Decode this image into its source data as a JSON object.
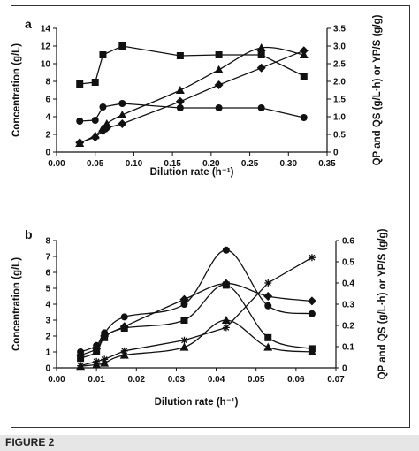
{
  "caption": "FIGURE 2",
  "chart_data": [
    {
      "panel_label": "a",
      "type": "line",
      "xlabel": "Dilution rate (h⁻¹)",
      "ylabel_left": "Concentration (g/L)",
      "ylabel_right": "QP and QS (g/L·h) or YP/S (g/g)",
      "xlim": [
        0,
        0.35
      ],
      "ylim_left": [
        0,
        14
      ],
      "ylim_right": [
        0,
        3.5
      ],
      "x_ticks": [
        "0.00",
        "0.05",
        "0.10",
        "0.15",
        "0.20",
        "0.25",
        "0.30",
        "0.35"
      ],
      "y_left_ticks": [
        "0",
        "2",
        "4",
        "6",
        "8",
        "10",
        "12",
        "14"
      ],
      "y_right_ticks": [
        "0",
        "0.5",
        "1.0",
        "1.5",
        "2.0",
        "2.5",
        "3.0",
        "3.5"
      ],
      "grid": false,
      "series": [
        {
          "marker": "square",
          "axis": "left",
          "smooth": false,
          "x": [
            0.03,
            0.05,
            0.06,
            0.085,
            0.16,
            0.21,
            0.265,
            0.32
          ],
          "y": [
            7.7,
            7.9,
            11.0,
            12.0,
            10.9,
            11.0,
            11.0,
            8.6
          ]
        },
        {
          "marker": "circle",
          "axis": "left",
          "smooth": false,
          "x": [
            0.03,
            0.05,
            0.06,
            0.085,
            0.16,
            0.21,
            0.265,
            0.32
          ],
          "y": [
            3.5,
            3.6,
            5.1,
            5.5,
            5.0,
            5.0,
            5.0,
            3.9
          ]
        },
        {
          "marker": "triangle",
          "axis": "right",
          "smooth": true,
          "x": [
            0.03,
            0.05,
            0.06,
            0.065,
            0.085,
            0.16,
            0.21,
            0.265,
            0.32
          ],
          "y": [
            0.25,
            0.47,
            0.68,
            0.8,
            1.05,
            1.75,
            2.33,
            2.95,
            2.75
          ]
        },
        {
          "marker": "diamond",
          "axis": "right",
          "smooth": false,
          "x": [
            0.03,
            0.05,
            0.06,
            0.065,
            0.085,
            0.16,
            0.21,
            0.265,
            0.32
          ],
          "y": [
            0.27,
            0.42,
            0.6,
            0.68,
            0.8,
            1.43,
            1.9,
            2.38,
            2.87
          ]
        }
      ]
    },
    {
      "panel_label": "b",
      "type": "line",
      "xlabel": "Dilution rate (h⁻¹)",
      "ylabel_left": "Concentration (g/L)",
      "ylabel_right": "QP and QS (g/L·h) or YP/S (g/g)",
      "xlim": [
        0,
        0.07
      ],
      "ylim_left": [
        0,
        8
      ],
      "ylim_right": [
        0,
        0.6
      ],
      "x_ticks": [
        "0.00",
        "0.01",
        "0.02",
        "0.03",
        "0.04",
        "0.05",
        "0.06",
        "0.07"
      ],
      "y_left_ticks": [
        "0",
        "1",
        "2",
        "3",
        "4",
        "5",
        "6",
        "7",
        "8"
      ],
      "y_right_ticks": [
        "0",
        "0.1",
        "0.2",
        "0.3",
        "0.4",
        "0.5",
        "0.6"
      ],
      "grid": false,
      "series": [
        {
          "marker": "circle",
          "axis": "left",
          "smooth": true,
          "x": [
            0.006,
            0.01,
            0.012,
            0.017,
            0.032,
            0.0425,
            0.053,
            0.064
          ],
          "y": [
            1.0,
            1.4,
            2.2,
            3.2,
            4.0,
            7.4,
            3.9,
            3.4
          ]
        },
        {
          "marker": "diamond",
          "axis": "left",
          "smooth": true,
          "x": [
            0.006,
            0.01,
            0.012,
            0.017,
            0.032,
            0.0425,
            0.053,
            0.064
          ],
          "y": [
            0.8,
            1.2,
            2.0,
            2.6,
            4.3,
            5.3,
            4.5,
            4.2
          ]
        },
        {
          "marker": "square",
          "axis": "left",
          "smooth": true,
          "x": [
            0.006,
            0.01,
            0.012,
            0.017,
            0.032,
            0.0425,
            0.053,
            0.064
          ],
          "y": [
            0.6,
            1.0,
            1.9,
            2.5,
            3.0,
            5.2,
            1.9,
            1.2
          ]
        },
        {
          "marker": "triangle",
          "axis": "left",
          "smooth": true,
          "x": [
            0.006,
            0.01,
            0.012,
            0.017,
            0.032,
            0.0425,
            0.053,
            0.064
          ],
          "y": [
            0.1,
            0.2,
            0.3,
            0.8,
            1.3,
            3.0,
            1.3,
            1.0
          ]
        },
        {
          "marker": "star",
          "axis": "right",
          "smooth": false,
          "x": [
            0.006,
            0.01,
            0.012,
            0.017,
            0.032,
            0.0425,
            0.053,
            0.064
          ],
          "y": [
            0.01,
            0.03,
            0.04,
            0.08,
            0.13,
            0.19,
            0.4,
            0.52
          ]
        }
      ]
    }
  ]
}
